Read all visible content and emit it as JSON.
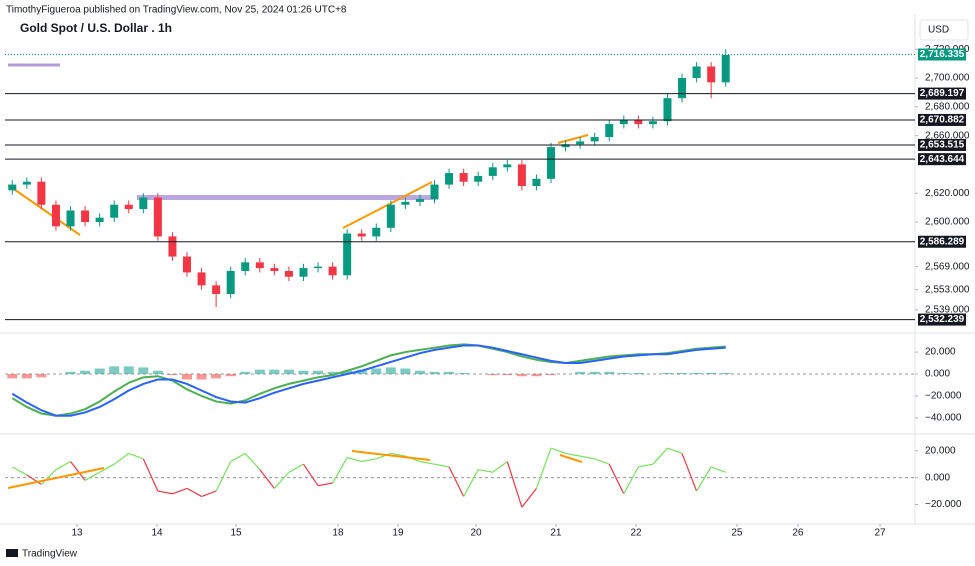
{
  "header": {
    "publisher": "TimothyFigueroa published on TradingView.com, Nov 25, 2024 01:26 UTC+8"
  },
  "footer": {
    "brand": "TradingView"
  },
  "chart_data": [
    {
      "type": "candlestick",
      "title": "Gold Spot / U.S. Dollar . 1h",
      "currency": "USD",
      "up_color": "#089981",
      "down_color": "#f23645",
      "open": [
        2622,
        2626,
        2628,
        2612,
        2597,
        2608,
        2600,
        2603,
        2612,
        2609,
        2617,
        2590,
        2576,
        2565,
        2556,
        2550,
        2566,
        2572,
        2568,
        2566,
        2562,
        2568,
        2569,
        2563,
        2592,
        2590,
        2596,
        2612,
        2614,
        2616,
        2626,
        2634,
        2628,
        2632,
        2638,
        2640,
        2625,
        2630,
        2652,
        2654,
        2656,
        2659,
        2668,
        2671,
        2668,
        2670,
        2686,
        2700,
        2708,
        2697
      ],
      "high": [
        2629,
        2631,
        2631,
        2615,
        2611,
        2611,
        2606,
        2615,
        2615,
        2620,
        2620,
        2593,
        2579,
        2568,
        2559,
        2569,
        2575,
        2575,
        2571,
        2569,
        2571,
        2572,
        2572,
        2595,
        2595,
        2599,
        2615,
        2617,
        2619,
        2629,
        2637,
        2637,
        2635,
        2641,
        2643,
        2643,
        2633,
        2655,
        2657,
        2659,
        2662,
        2671,
        2674,
        2674,
        2673,
        2689,
        2703,
        2711,
        2711,
        2720
      ],
      "low": [
        2619,
        2623,
        2609,
        2594,
        2594,
        2597,
        2597,
        2600,
        2606,
        2606,
        2587,
        2573,
        2562,
        2553,
        2541,
        2547,
        2563,
        2565,
        2563,
        2559,
        2559,
        2565,
        2560,
        2560,
        2587,
        2587,
        2593,
        2609,
        2611,
        2613,
        2623,
        2625,
        2625,
        2629,
        2635,
        2622,
        2622,
        2627,
        2649,
        2651,
        2653,
        2656,
        2665,
        2665,
        2665,
        2667,
        2683,
        2697,
        2686,
        2694
      ],
      "close": [
        2626,
        2628,
        2612,
        2597,
        2608,
        2600,
        2603,
        2612,
        2609,
        2617,
        2590,
        2576,
        2565,
        2556,
        2550,
        2566,
        2572,
        2568,
        2566,
        2562,
        2568,
        2569,
        2563,
        2592,
        2590,
        2596,
        2612,
        2614,
        2616,
        2626,
        2634,
        2628,
        2632,
        2638,
        2640,
        2625,
        2630,
        2652,
        2654,
        2656,
        2659,
        2668,
        2671,
        2668,
        2670,
        2686,
        2700,
        2708,
        2697,
        2716
      ],
      "xlim": [
        -0.5,
        62
      ],
      "xticks": [
        {
          "value": 4.45,
          "label": "13"
        },
        {
          "value": 9.94,
          "label": "14"
        },
        {
          "value": 15.37,
          "label": "15"
        },
        {
          "value": 22.37,
          "label": "18"
        },
        {
          "value": 26.49,
          "label": "19"
        },
        {
          "value": 31.85,
          "label": "20"
        },
        {
          "value": 37.34,
          "label": "21"
        },
        {
          "value": 42.84,
          "label": "22"
        },
        {
          "value": 49.77,
          "label": "25"
        },
        {
          "value": 53.96,
          "label": "26"
        },
        {
          "value": 59.6,
          "label": "27"
        }
      ],
      "ylim": [
        2525,
        2740.3
      ],
      "yticks": [
        {
          "value": 2720,
          "label": "2,720.000"
        },
        {
          "value": 2700,
          "label": "2,700.000"
        },
        {
          "value": 2680,
          "label": "2,680.000"
        },
        {
          "value": 2660,
          "label": "2,660.000"
        },
        {
          "value": 2620,
          "label": "2,620.000"
        },
        {
          "value": 2600,
          "label": "2,600.000"
        },
        {
          "value": 2569,
          "label": "2,569.000"
        },
        {
          "value": 2553,
          "label": "2,553.000"
        },
        {
          "value": 2539,
          "label": "2,539.000"
        }
      ],
      "levels": [
        {
          "value": 2689.197,
          "label": "2,689.197"
        },
        {
          "value": 2670.882,
          "label": "2,670.882"
        },
        {
          "value": 2653.515,
          "label": "2,653.515"
        },
        {
          "value": 2643.644,
          "label": "2,643.644"
        },
        {
          "value": 2586.289,
          "label": "2,586.289"
        },
        {
          "value": 2532.239,
          "label": "2,532.239"
        }
      ],
      "last_price": {
        "value": 2716.335,
        "label": "2,716.335",
        "color": "#089981"
      }
    },
    {
      "type": "macd",
      "series": [
        {
          "color": "#4caf50",
          "values": [
            -22,
            -30,
            -36,
            -38,
            -36,
            -32,
            -25,
            -16,
            -8,
            -3,
            -2,
            -6,
            -14,
            -20,
            -25,
            -27,
            -24,
            -18,
            -13,
            -9,
            -6,
            -3,
            -1,
            3,
            7,
            12,
            17,
            20,
            22,
            24,
            26,
            27,
            26,
            23,
            20,
            16,
            13,
            11,
            10,
            12,
            14,
            16,
            17,
            18,
            18,
            19,
            21,
            23,
            24,
            25
          ]
        },
        {
          "color": "#2962ff",
          "values": [
            -18,
            -26,
            -33,
            -38,
            -38,
            -35,
            -30,
            -23,
            -15,
            -9,
            -5,
            -5,
            -9,
            -15,
            -21,
            -25,
            -26,
            -22,
            -17,
            -13,
            -9,
            -6,
            -3,
            0,
            3,
            7,
            11,
            15,
            19,
            22,
            24,
            26,
            26,
            24,
            21,
            18,
            15,
            12,
            10,
            10,
            12,
            14,
            16,
            17,
            18,
            18,
            20,
            22,
            23,
            24
          ]
        }
      ],
      "histogram": {
        "up_color": "#26a69a",
        "down_color": "#ef5350",
        "values": [
          -4,
          -4,
          -3,
          0,
          2,
          3,
          5,
          7,
          7,
          6,
          3,
          -1,
          -5,
          -5,
          -4,
          -2,
          2,
          4,
          4,
          4,
          3,
          3,
          2,
          3,
          4,
          5,
          6,
          5,
          3,
          2,
          2,
          1,
          0,
          -1,
          -1,
          -2,
          -2,
          -1,
          0,
          2,
          2,
          2,
          1,
          1,
          0,
          1,
          1,
          1,
          1,
          1
        ]
      },
      "ylim": [
        -51,
        31
      ],
      "yticks": [
        {
          "value": 20,
          "label": "20.000"
        },
        {
          "value": 0,
          "label": "0.000"
        },
        {
          "value": -20,
          "label": "−20.000"
        },
        {
          "value": -40,
          "label": "−40.000"
        }
      ]
    },
    {
      "type": "line",
      "series": [
        {
          "color": "#76e35a",
          "down_color": "#f23645",
          "values": [
            8,
            2,
            -5,
            6,
            12,
            -2,
            4,
            10,
            18,
            14,
            -10,
            -12,
            -8,
            -14,
            -10,
            12,
            18,
            6,
            -8,
            4,
            10,
            -6,
            -4,
            15,
            12,
            14,
            18,
            16,
            12,
            10,
            8,
            -14,
            6,
            4,
            12,
            -22,
            -8,
            22,
            18,
            16,
            14,
            10,
            -12,
            8,
            10,
            22,
            18,
            -10,
            8,
            4
          ]
        }
      ],
      "ylim": [
        -33,
        28
      ],
      "yticks": [
        {
          "value": 20,
          "label": "20.000"
        },
        {
          "value": 0,
          "label": "0.000"
        },
        {
          "value": -20,
          "label": "−20.000"
        }
      ]
    }
  ]
}
